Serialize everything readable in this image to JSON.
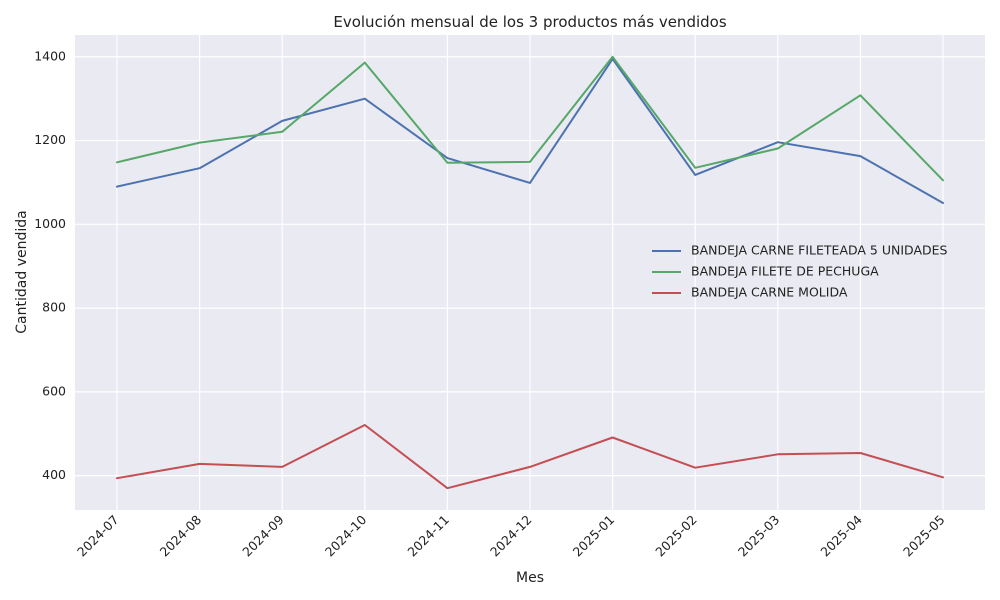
{
  "chart_data": {
    "type": "line",
    "title": "Evolución mensual de los 3 productos más vendidos",
    "xlabel": "Mes",
    "ylabel": "Cantidad vendida",
    "categories": [
      "2024-07",
      "2024-08",
      "2024-09",
      "2024-10",
      "2024-11",
      "2024-12",
      "2025-01",
      "2025-02",
      "2025-03",
      "2025-04",
      "2025-05"
    ],
    "ylim": [
      318,
      1452
    ],
    "yticks": [
      400,
      600,
      800,
      1000,
      1200,
      1400
    ],
    "grid": true,
    "legend_position": "center-right",
    "series": [
      {
        "name": "BANDEJA CARNE FILETEADA 5 UNIDADES",
        "color": "#4c72b0",
        "values": [
          1090,
          1134,
          1247,
          1300,
          1158,
          1099,
          1395,
          1118,
          1196,
          1163,
          1051
        ]
      },
      {
        "name": "BANDEJA FILETE DE PECHUGA",
        "color": "#55a868",
        "values": [
          1148,
          1195,
          1221,
          1386,
          1147,
          1149,
          1400,
          1135,
          1181,
          1308,
          1105
        ]
      },
      {
        "name": "BANDEJA CARNE MOLIDA",
        "color": "#c44e52",
        "values": [
          394,
          428,
          421,
          521,
          370,
          421,
          491,
          419,
          451,
          454,
          396
        ]
      }
    ],
    "colors": {
      "plot_background": "#eaeaf2",
      "grid": "#ffffff"
    }
  }
}
